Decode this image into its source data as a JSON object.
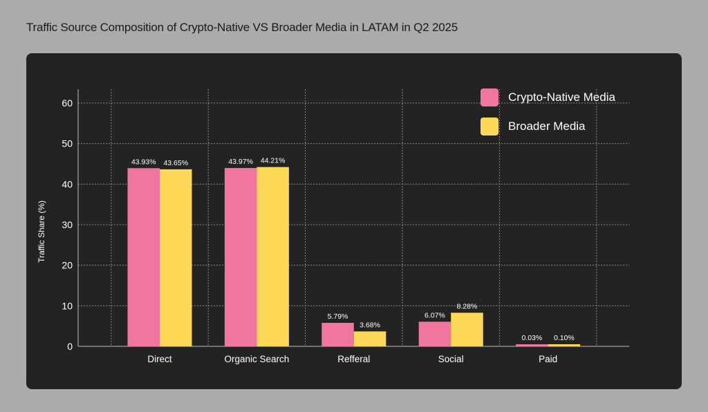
{
  "title": "Traffic Source Composition of Crypto-Native VS Broader Media in LATAM in Q2 2025",
  "chart_data": {
    "type": "bar",
    "title": "Traffic Source Composition of Crypto-Native VS Broader Media in LATAM in Q2 2025",
    "xlabel": "",
    "ylabel": "Traffic Share (%)",
    "ylim": [
      0,
      60
    ],
    "yticks": [
      0,
      10,
      20,
      30,
      40,
      50,
      60
    ],
    "grid": true,
    "legend": "top-right",
    "categories": [
      "Direct",
      "Organic Search",
      "Refferal",
      "Social",
      "Paid"
    ],
    "series": [
      {
        "name": "Crypto-Native Media",
        "color": "#f1769f",
        "values": [
          43.93,
          43.97,
          5.79,
          6.07,
          0.03
        ],
        "labels": [
          "43.93%",
          "43.97%",
          "5.79%",
          "6.07%",
          "0.03%"
        ]
      },
      {
        "name": "Broader Media",
        "color": "#fed857",
        "values": [
          43.65,
          44.21,
          3.68,
          8.28,
          0.1
        ],
        "labels": [
          "43.65%",
          "44.21%",
          "3.68%",
          "8.28%",
          "0.10%"
        ]
      }
    ]
  }
}
